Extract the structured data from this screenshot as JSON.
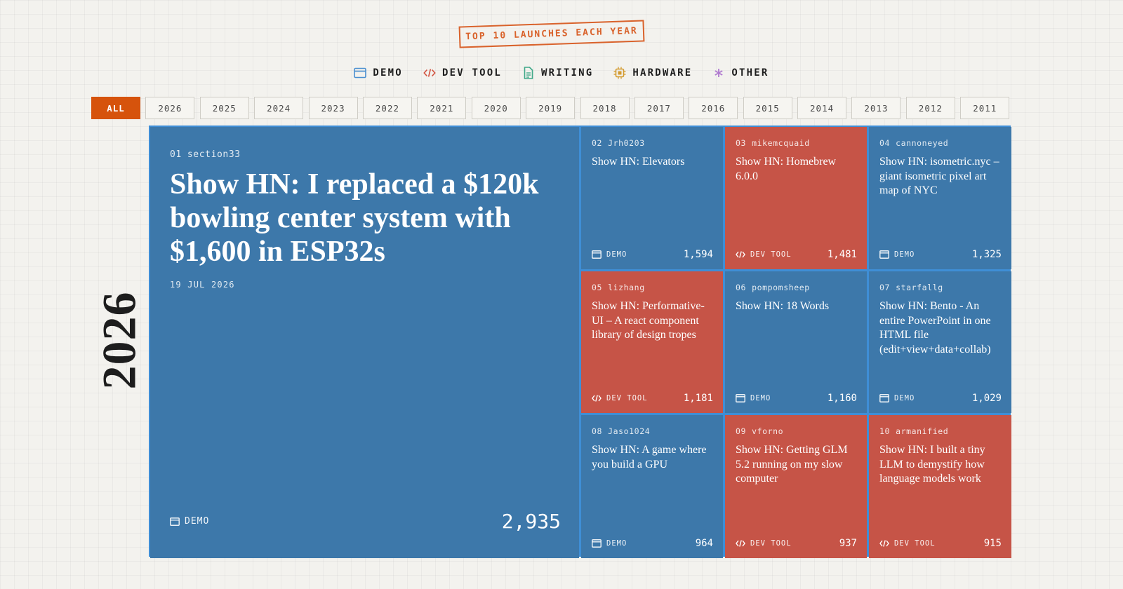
{
  "header": {
    "stamp": "TOP 10 LAUNCHES EACH YEAR"
  },
  "legend": [
    {
      "label": "DEMO",
      "icon": "browser-window-icon",
      "color": "#4a8fd0"
    },
    {
      "label": "DEV TOOL",
      "icon": "code-brackets-icon",
      "color": "#d2523f"
    },
    {
      "label": "WRITING",
      "icon": "document-icon",
      "color": "#3fa888"
    },
    {
      "label": "HARDWARE",
      "icon": "chip-icon",
      "color": "#d39a2e"
    },
    {
      "label": "OTHER",
      "icon": "asterisk-icon",
      "color": "#b07ad0"
    }
  ],
  "filters": [
    "ALL",
    "2026",
    "2025",
    "2024",
    "2023",
    "2022",
    "2021",
    "2020",
    "2019",
    "2018",
    "2017",
    "2016",
    "2015",
    "2014",
    "2013",
    "2012",
    "2011"
  ],
  "active_filter": "ALL",
  "year": "2026",
  "colors": {
    "demo": "#3d78aa",
    "devtool": "#c65447",
    "accent": "#d6530c",
    "grid_line": "#3f8ed6"
  },
  "launches": [
    {
      "rank": "01",
      "user": "section33",
      "title": "Show HN: I replaced a $120k bowling center system with $1,600 in ESP32s",
      "date": "19 JUL 2026",
      "category": "DEMO",
      "points": "2,935"
    },
    {
      "rank": "02",
      "user": "Jrh0203",
      "title": "Show HN: Elevators",
      "category": "DEMO",
      "points": "1,594"
    },
    {
      "rank": "03",
      "user": "mikemcquaid",
      "title": "Show HN: Homebrew 6.0.0",
      "category": "DEV TOOL",
      "points": "1,481"
    },
    {
      "rank": "04",
      "user": "cannoneyed",
      "title": "Show HN: isometric.nyc – giant isometric pixel art map of NYC",
      "category": "DEMO",
      "points": "1,325"
    },
    {
      "rank": "05",
      "user": "lizhang",
      "title": "Show HN: Performative-UI – A react component library of design tropes",
      "category": "DEV TOOL",
      "points": "1,181"
    },
    {
      "rank": "06",
      "user": "pompomsheep",
      "title": "Show HN: 18 Words",
      "category": "DEMO",
      "points": "1,160"
    },
    {
      "rank": "07",
      "user": "starfallg",
      "title": "Show HN: Bento - An entire PowerPoint in one HTML file (edit+view+data+collab)",
      "category": "DEMO",
      "points": "1,029"
    },
    {
      "rank": "08",
      "user": "Jaso1024",
      "title": "Show HN: A game where you build a GPU",
      "category": "DEMO",
      "points": "964"
    },
    {
      "rank": "09",
      "user": "vforno",
      "title": "Show HN: Getting GLM 5.2 running on my slow computer",
      "category": "DEV TOOL",
      "points": "937"
    },
    {
      "rank": "10",
      "user": "armanified",
      "title": "Show HN: I built a tiny LLM to demystify how language models work",
      "category": "DEV TOOL",
      "points": "915"
    }
  ]
}
